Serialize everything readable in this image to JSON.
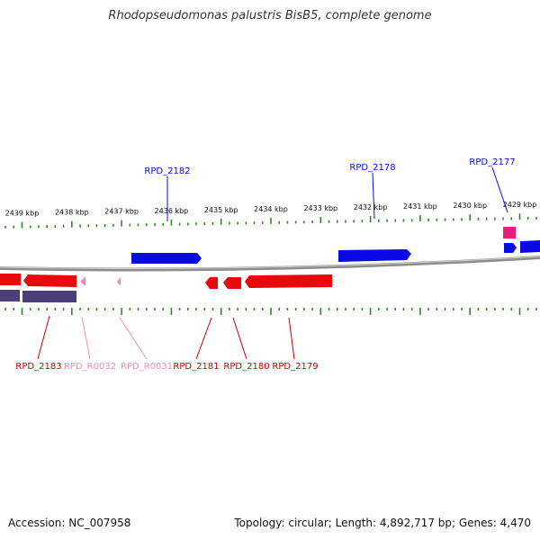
{
  "title": "Rhodopseudomonas palustris BisB5, complete genome",
  "footer": {
    "accession": "Accession: NC_007958",
    "summary": "Topology: circular; Length: 4,892,717 bp; Genes: 4,470"
  },
  "colors": {
    "axis_tick": "#2e8b22",
    "backbone": "#8c8c8c",
    "forward_gene": "#0a0ae6",
    "reverse_gene": "#e60a0a",
    "rna_gene": "#f08cb4",
    "pseudo_gene": "#4a3f7a",
    "magenta_feature": "#e6207a"
  },
  "ruler": {
    "labels": [
      "2439 kbp",
      "2438 kbp",
      "2437 kbp",
      "2436 kbp",
      "2435 kbp",
      "2434 kbp",
      "2433 kbp",
      "2432 kbp",
      "2431 kbp",
      "2430 kbp",
      "2429 kbp"
    ]
  },
  "top_labels": [
    {
      "text": "RPD_2182",
      "color": "#0a0ae6"
    },
    {
      "text": "RPD_2178",
      "color": "#0a0ae6"
    },
    {
      "text": "RPD_2177",
      "color": "#0a0ae6"
    }
  ],
  "bottom_labels": [
    {
      "text": "RPD_2183",
      "color": "#cc0000"
    },
    {
      "text": "RPD_R0032",
      "color": "#f08cb4"
    },
    {
      "text": "RPD_R0031",
      "color": "#f08cb4"
    },
    {
      "text": "RPD_2181",
      "color": "#cc0000"
    },
    {
      "text": "RPD_2180",
      "color": "#cc0000"
    },
    {
      "text": "RPD_2179",
      "color": "#cc0000"
    }
  ]
}
